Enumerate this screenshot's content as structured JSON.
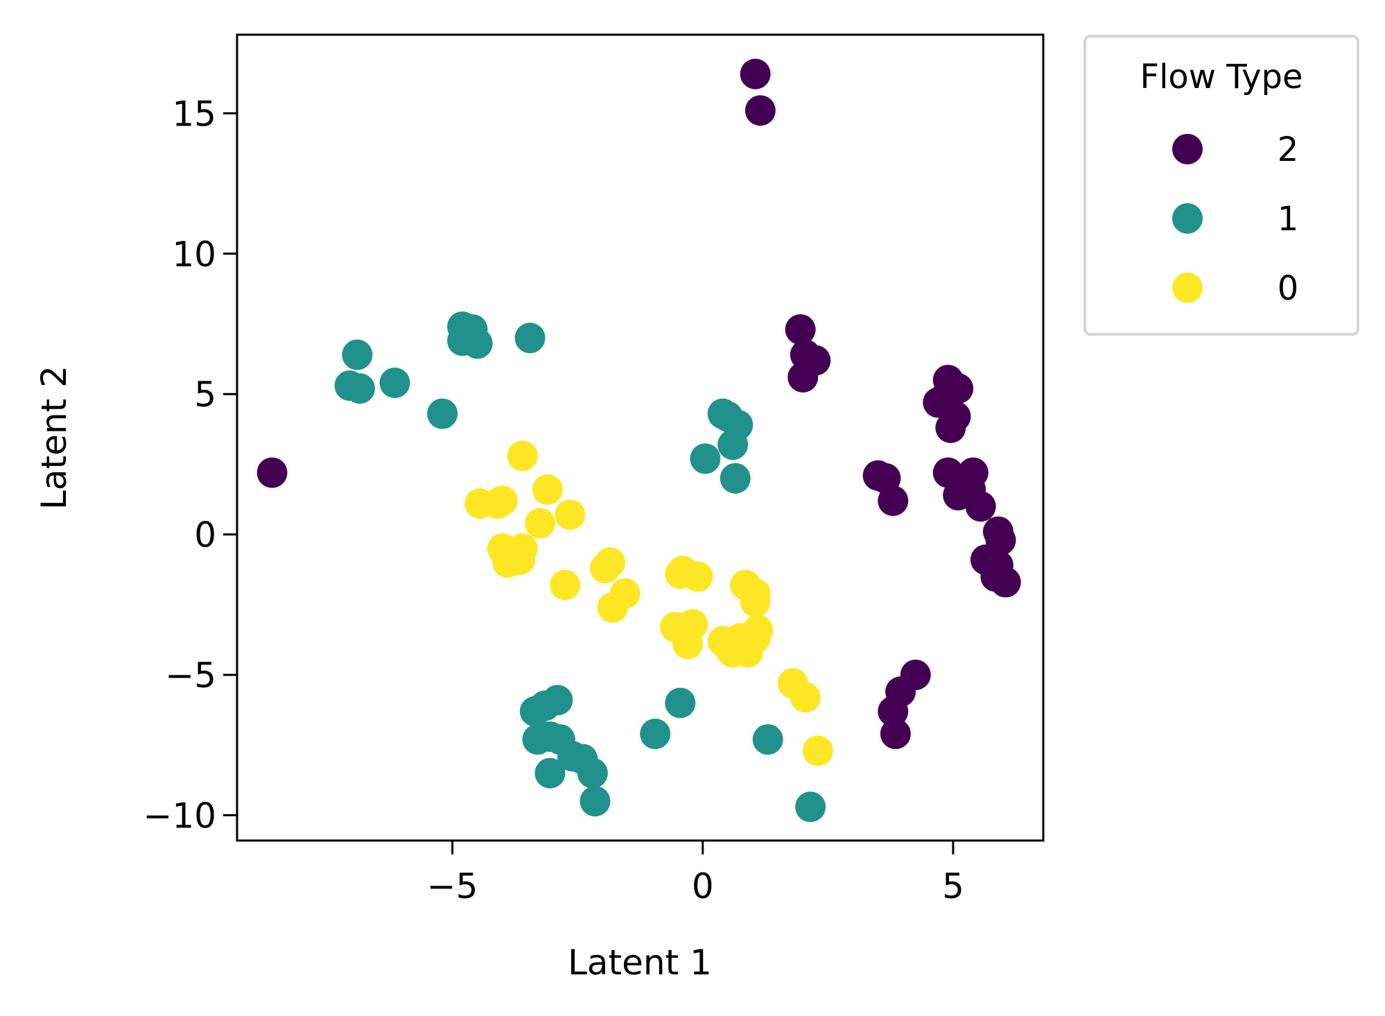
{
  "chart_data": {
    "type": "scatter",
    "title": "",
    "xlabel": "Latent 1",
    "ylabel": "Latent 2",
    "xlim": [
      -9.3,
      6.8
    ],
    "ylim": [
      -10.9,
      17.8
    ],
    "xticks": [
      {
        "value": -5,
        "label": "−5"
      },
      {
        "value": 0,
        "label": "0"
      },
      {
        "value": 5,
        "label": "5"
      }
    ],
    "yticks": [
      {
        "value": -10,
        "label": "−10"
      },
      {
        "value": -5,
        "label": "−5"
      },
      {
        "value": 0,
        "label": "0"
      },
      {
        "value": 5,
        "label": "5"
      },
      {
        "value": 10,
        "label": "10"
      },
      {
        "value": 15,
        "label": "15"
      }
    ],
    "grid": false,
    "legend": {
      "title": "Flow Type",
      "placement": "outside top-right",
      "entries": [
        "2",
        "1",
        "0"
      ]
    },
    "series": [
      {
        "name": "2",
        "color": "#440154",
        "points": [
          [
            -8.6,
            2.2
          ],
          [
            1.05,
            16.4
          ],
          [
            1.15,
            15.1
          ],
          [
            1.95,
            7.3
          ],
          [
            2.05,
            6.4
          ],
          [
            2.25,
            6.2
          ],
          [
            2.0,
            5.6
          ],
          [
            3.5,
            2.1
          ],
          [
            3.65,
            2.0
          ],
          [
            3.8,
            1.2
          ],
          [
            4.9,
            5.5
          ],
          [
            5.0,
            5.3
          ],
          [
            5.1,
            5.2
          ],
          [
            4.7,
            4.7
          ],
          [
            4.85,
            4.9
          ],
          [
            5.05,
            4.2
          ],
          [
            4.95,
            3.8
          ],
          [
            4.9,
            2.2
          ],
          [
            5.1,
            1.4
          ],
          [
            5.35,
            1.6
          ],
          [
            5.4,
            2.2
          ],
          [
            5.55,
            1.0
          ],
          [
            5.9,
            0.1
          ],
          [
            5.95,
            -0.2
          ],
          [
            5.65,
            -0.9
          ],
          [
            5.9,
            -1.1
          ],
          [
            5.85,
            -1.5
          ],
          [
            6.05,
            -1.7
          ],
          [
            4.25,
            -5.0
          ],
          [
            3.95,
            -5.6
          ],
          [
            3.8,
            -6.3
          ],
          [
            3.85,
            -7.1
          ]
        ]
      },
      {
        "name": "1",
        "color": "#21918c",
        "points": [
          [
            -6.9,
            6.4
          ],
          [
            -7.05,
            5.3
          ],
          [
            -6.85,
            5.2
          ],
          [
            -6.15,
            5.4
          ],
          [
            -5.2,
            4.3
          ],
          [
            -4.8,
            7.4
          ],
          [
            -4.6,
            7.3
          ],
          [
            -4.8,
            6.9
          ],
          [
            -4.5,
            6.8
          ],
          [
            -3.45,
            7.0
          ],
          [
            0.4,
            4.3
          ],
          [
            0.5,
            4.2
          ],
          [
            0.7,
            3.9
          ],
          [
            0.6,
            3.2
          ],
          [
            0.05,
            2.7
          ],
          [
            0.65,
            2.0
          ],
          [
            -3.35,
            -6.3
          ],
          [
            -3.15,
            -6.1
          ],
          [
            -2.9,
            -5.9
          ],
          [
            -3.3,
            -7.3
          ],
          [
            -3.05,
            -7.2
          ],
          [
            -2.85,
            -7.3
          ],
          [
            -2.6,
            -7.9
          ],
          [
            -2.4,
            -8.0
          ],
          [
            -2.2,
            -8.5
          ],
          [
            -3.05,
            -8.5
          ],
          [
            -2.15,
            -9.5
          ],
          [
            -0.95,
            -7.1
          ],
          [
            -0.45,
            -6.0
          ],
          [
            1.3,
            -7.3
          ],
          [
            2.15,
            -9.7
          ]
        ]
      },
      {
        "name": "0",
        "color": "#fde725",
        "points": [
          [
            -3.6,
            2.8
          ],
          [
            -4.45,
            1.1
          ],
          [
            -4.1,
            1.1
          ],
          [
            -4.0,
            1.2
          ],
          [
            -3.1,
            1.6
          ],
          [
            -3.25,
            0.4
          ],
          [
            -2.65,
            0.7
          ],
          [
            -4.0,
            -0.5
          ],
          [
            -3.85,
            -0.6
          ],
          [
            -3.6,
            -0.5
          ],
          [
            -3.75,
            -0.8
          ],
          [
            -3.9,
            -1.0
          ],
          [
            -3.65,
            -0.9
          ],
          [
            -2.75,
            -1.8
          ],
          [
            -1.95,
            -1.2
          ],
          [
            -1.85,
            -1.0
          ],
          [
            -1.55,
            -2.1
          ],
          [
            -1.8,
            -2.6
          ],
          [
            -0.45,
            -1.4
          ],
          [
            -0.4,
            -1.3
          ],
          [
            -0.1,
            -1.5
          ],
          [
            -0.55,
            -3.3
          ],
          [
            -0.3,
            -3.3
          ],
          [
            -0.2,
            -3.2
          ],
          [
            -0.3,
            -3.9
          ],
          [
            0.4,
            -3.8
          ],
          [
            0.55,
            -4.1
          ],
          [
            0.6,
            -4.2
          ],
          [
            0.9,
            -4.2
          ],
          [
            0.75,
            -3.7
          ],
          [
            1.05,
            -3.7
          ],
          [
            1.1,
            -3.4
          ],
          [
            0.85,
            -1.8
          ],
          [
            1.05,
            -2.1
          ],
          [
            1.05,
            -2.4
          ],
          [
            1.8,
            -5.3
          ],
          [
            2.05,
            -5.8
          ],
          [
            2.3,
            -7.7
          ]
        ]
      }
    ]
  }
}
